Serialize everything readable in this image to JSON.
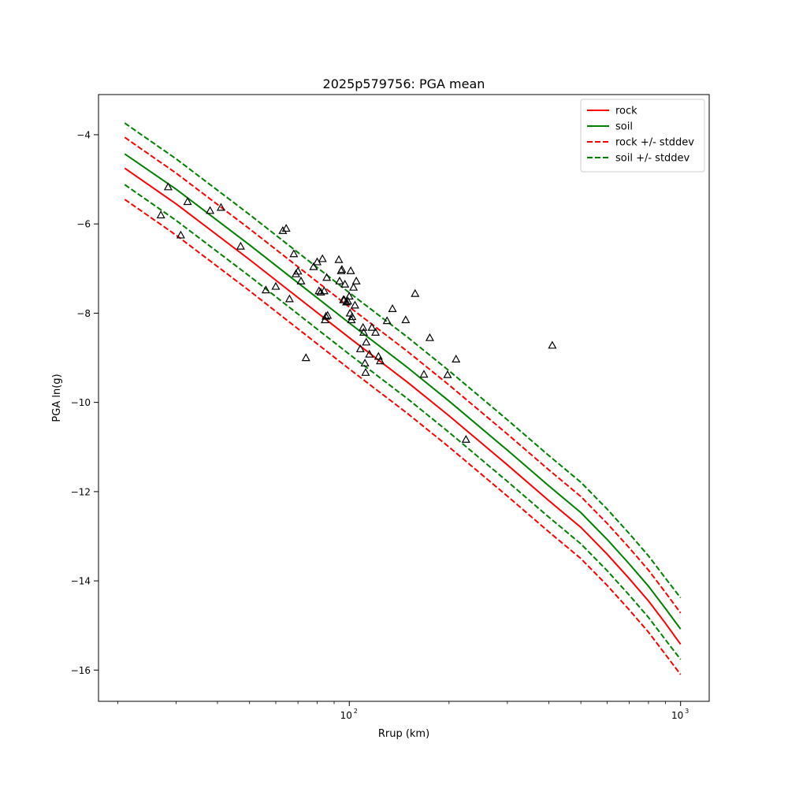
{
  "chart_data": {
    "type": "scatter",
    "title": "2025p579756: PGA mean",
    "xlabel": "Rrup (km)",
    "ylabel": "PGA ln(g)",
    "xscale": "log",
    "xlim": [
      17.5,
      1220
    ],
    "ylim": [
      -16.7,
      -3.1
    ],
    "x_major_ticks": [
      {
        "value": 100,
        "label": "10",
        "exp": "2"
      },
      {
        "value": 1000,
        "label": "10",
        "exp": "3"
      }
    ],
    "y_ticks": [
      {
        "value": -4,
        "label": "−4"
      },
      {
        "value": -6,
        "label": "−6"
      },
      {
        "value": -8,
        "label": "−8"
      },
      {
        "value": -10,
        "label": "−10"
      },
      {
        "value": -12,
        "label": "−12"
      },
      {
        "value": -14,
        "label": "−14"
      },
      {
        "value": -16,
        "label": "−16"
      }
    ],
    "grid": false,
    "legend": {
      "position": "top-right",
      "entries": [
        {
          "label": "rock",
          "color": "#ff0000",
          "style": "solid"
        },
        {
          "label": "soil",
          "color": "#008000",
          "style": "solid"
        },
        {
          "label": "rock +/- stddev",
          "color": "#ff0000",
          "style": "dashed"
        },
        {
          "label": "soil +/- stddev",
          "color": "#008000",
          "style": "dashed"
        }
      ]
    },
    "lines": [
      {
        "label": "rock",
        "color": "#ff0000",
        "style": "solid",
        "x": [
          21,
          30,
          50,
          70,
          100,
          150,
          200,
          300,
          400,
          500,
          600,
          700,
          800,
          900,
          1000
        ],
        "y": [
          -4.75,
          -5.55,
          -6.8,
          -7.65,
          -8.55,
          -9.55,
          -10.3,
          -11.4,
          -12.2,
          -12.8,
          -13.4,
          -13.95,
          -14.45,
          -14.95,
          -15.42
        ]
      },
      {
        "label": "soil",
        "color": "#008000",
        "style": "solid",
        "x": [
          21,
          30,
          50,
          70,
          100,
          150,
          200,
          300,
          400,
          500,
          600,
          700,
          800,
          900,
          1000
        ],
        "y": [
          -4.43,
          -5.22,
          -6.47,
          -7.32,
          -8.22,
          -9.22,
          -9.97,
          -11.07,
          -11.87,
          -12.47,
          -13.07,
          -13.62,
          -14.12,
          -14.62,
          -15.08
        ]
      },
      {
        "label": "rock + stddev",
        "color": "#ff0000",
        "style": "dashed",
        "x": [
          21,
          30,
          50,
          70,
          100,
          150,
          200,
          300,
          400,
          500,
          600,
          700,
          800,
          900,
          1000
        ],
        "y": [
          -4.06,
          -4.86,
          -6.11,
          -6.96,
          -7.86,
          -8.86,
          -9.61,
          -10.71,
          -11.51,
          -12.11,
          -12.71,
          -13.26,
          -13.76,
          -14.26,
          -14.72
        ]
      },
      {
        "label": "rock - stddev",
        "color": "#ff0000",
        "style": "dashed",
        "x": [
          21,
          30,
          50,
          70,
          100,
          150,
          200,
          300,
          400,
          500,
          600,
          700,
          800,
          900,
          1000
        ],
        "y": [
          -5.45,
          -6.25,
          -7.5,
          -8.35,
          -9.25,
          -10.25,
          -11.0,
          -12.1,
          -12.9,
          -13.5,
          -14.1,
          -14.65,
          -15.15,
          -15.65,
          -16.1
        ]
      },
      {
        "label": "soil + stddev",
        "color": "#008000",
        "style": "dashed",
        "x": [
          21,
          30,
          50,
          70,
          100,
          150,
          200,
          300,
          400,
          500,
          600,
          700,
          800,
          900,
          1000
        ],
        "y": [
          -3.74,
          -4.54,
          -5.79,
          -6.64,
          -7.54,
          -8.54,
          -9.29,
          -10.39,
          -11.19,
          -11.79,
          -12.39,
          -12.94,
          -13.44,
          -13.94,
          -14.38
        ]
      },
      {
        "label": "soil - stddev",
        "color": "#008000",
        "style": "dashed",
        "x": [
          21,
          30,
          50,
          70,
          100,
          150,
          200,
          300,
          400,
          500,
          600,
          700,
          800,
          900,
          1000
        ],
        "y": [
          -5.12,
          -5.92,
          -7.17,
          -8.02,
          -8.92,
          -9.92,
          -10.67,
          -11.77,
          -12.57,
          -13.17,
          -13.77,
          -14.32,
          -14.82,
          -15.32,
          -15.76
        ]
      }
    ],
    "points": {
      "marker": "triangle-open",
      "color": "#000000",
      "x": [
        28.4,
        27.0,
        31.0,
        32.5,
        38.0,
        41.0,
        47.0,
        56.0,
        60.0,
        63.0,
        64.5,
        66.0,
        68.0,
        69.0,
        70.0,
        71.5,
        74.0,
        78.0,
        80.0,
        81.0,
        82.0,
        83.0,
        84.0,
        84.5,
        85.0,
        85.5,
        86.0,
        93.0,
        93.5,
        94.5,
        95.0,
        96.0,
        96.5,
        97.0,
        98.0,
        99.0,
        100.0,
        100.5,
        101.0,
        101.5,
        102.0,
        103.0,
        104.0,
        105.0,
        108.0,
        110.0,
        110.5,
        111.5,
        112.0,
        112.5,
        115.0,
        117.0,
        120.0,
        122.5,
        124.0,
        130.0,
        135.0,
        148.0,
        158.0,
        168.0,
        175.0,
        198.0,
        210.0,
        225.0,
        410.0
      ],
      "y": [
        -5.17,
        -5.8,
        -6.25,
        -5.5,
        -5.7,
        -5.63,
        -6.5,
        -7.48,
        -7.4,
        -6.15,
        -6.1,
        -7.68,
        -6.67,
        -7.12,
        -7.06,
        -7.28,
        -9.0,
        -6.96,
        -6.85,
        -7.5,
        -7.53,
        -6.78,
        -7.5,
        -8.15,
        -8.07,
        -7.2,
        -8.05,
        -6.8,
        -7.28,
        -7.05,
        -7.02,
        -7.7,
        -7.7,
        -7.35,
        -7.75,
        -7.73,
        -7.62,
        -8.0,
        -7.05,
        -8.15,
        -8.08,
        -7.42,
        -7.82,
        -7.28,
        -8.8,
        -8.32,
        -8.43,
        -9.12,
        -9.33,
        -8.65,
        -8.92,
        -8.32,
        -8.43,
        -8.97,
        -9.07,
        -8.17,
        -7.9,
        -8.15,
        -7.56,
        -9.37,
        -8.55,
        -9.38,
        -9.03,
        -10.83,
        -8.72
      ]
    }
  }
}
